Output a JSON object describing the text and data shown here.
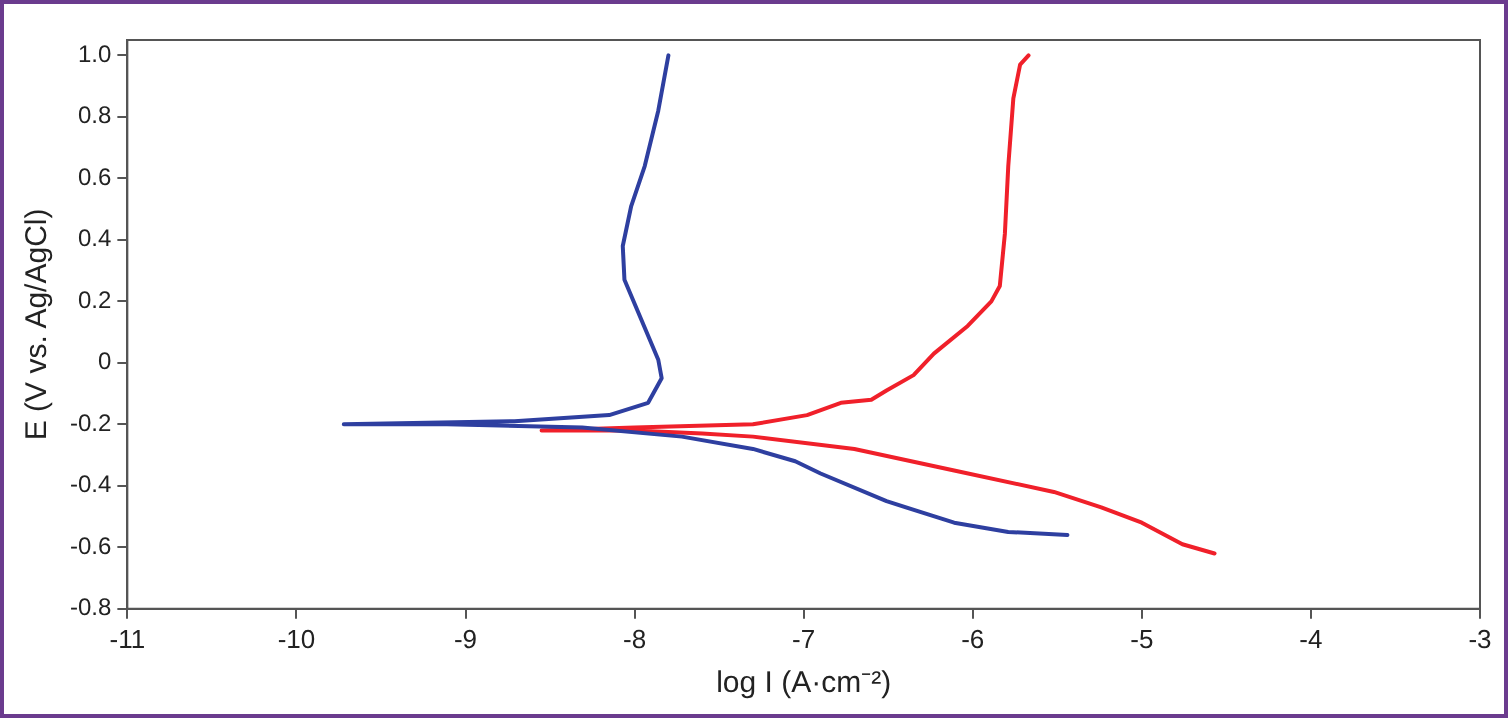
{
  "chart_data": {
    "type": "line",
    "xlabel": "log I (A·cm⁻²)",
    "ylabel": "E (V vs. Ag/AgCl)",
    "xlim": [
      -11,
      -3
    ],
    "xticks": [
      -11,
      -10,
      -9,
      -8,
      -7,
      -6,
      -5,
      -4,
      -3
    ],
    "ylim": [
      -0.8,
      1.05
    ],
    "yticks": [
      -0.8,
      -0.6,
      -0.4,
      -0.2,
      0,
      0.2,
      0.4,
      0.6,
      0.8,
      {
        "value": 1,
        "label": "1.0"
      }
    ],
    "grid": false,
    "legend": false,
    "marker": "none",
    "line_style": "solid",
    "series": [
      {
        "color": "#2e3fa0",
        "x": [
          -5.44,
          -5.79,
          -6.11,
          -6.51,
          -6.9,
          -7.05,
          -7.3,
          -7.72,
          -8.31,
          -9.11,
          -9.72,
          -8.71,
          -8.15,
          -7.92,
          -7.84,
          -7.86,
          -7.96,
          -8.06,
          -8.07,
          -8.02,
          -7.94,
          -7.86,
          -7.8
        ],
        "values": [
          -0.56,
          -0.55,
          -0.52,
          -0.45,
          -0.36,
          -0.32,
          -0.28,
          -0.24,
          -0.21,
          -0.2,
          -0.2,
          -0.19,
          -0.17,
          -0.13,
          -0.05,
          0.01,
          0.14,
          0.27,
          0.38,
          0.51,
          0.64,
          0.82,
          1.0
        ]
      },
      {
        "color": "#f0202a",
        "x": [
          -4.57,
          -4.76,
          -5.0,
          -5.24,
          -5.52,
          -6.11,
          -6.7,
          -7.3,
          -7.6,
          -8.0,
          -8.55,
          -8.0,
          -7.3,
          -6.98,
          -6.78,
          -6.6,
          -6.51,
          -6.35,
          -6.23,
          -6.03,
          -5.89,
          -5.84,
          -5.81,
          -5.79,
          -5.76,
          -5.72,
          -5.67
        ],
        "values": [
          -0.62,
          -0.59,
          -0.52,
          -0.47,
          -0.42,
          -0.35,
          -0.28,
          -0.24,
          -0.23,
          -0.22,
          -0.22,
          -0.21,
          -0.2,
          -0.17,
          -0.13,
          -0.12,
          -0.09,
          -0.04,
          0.03,
          0.12,
          0.2,
          0.25,
          0.42,
          0.64,
          0.86,
          0.97,
          1.0
        ]
      }
    ]
  }
}
